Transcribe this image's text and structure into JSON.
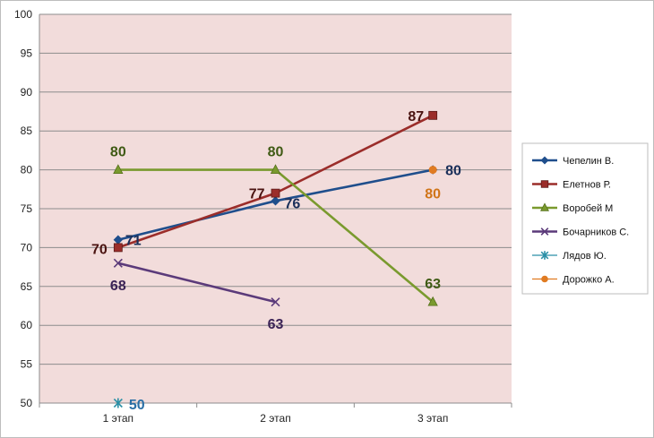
{
  "chart_data": {
    "type": "line",
    "title": "",
    "xlabel": "",
    "ylabel": "",
    "categories": [
      "1 этап",
      "2 этап",
      "3 этап"
    ],
    "ylim": [
      50,
      100
    ],
    "y_ticks": [
      "50",
      "55",
      "60",
      "65",
      "70",
      "75",
      "80",
      "85",
      "90",
      "95",
      "100"
    ],
    "grid": true,
    "legend_position": "right",
    "series": [
      {
        "name": "Чепелин В.",
        "values": [
          71,
          76,
          80
        ],
        "labels": [
          "71",
          "76",
          "80"
        ],
        "color": "#1f4e8c",
        "marker": "diamond"
      },
      {
        "name": "Елетнов Р.",
        "values": [
          70,
          77,
          87
        ],
        "labels": [
          "70",
          "77",
          "87"
        ],
        "color": "#9b2d2a",
        "marker": "square"
      },
      {
        "name": "Воробей М",
        "values": [
          80,
          80,
          63
        ],
        "labels": [
          "80",
          "80",
          "63"
        ],
        "color": "#7a9a2e",
        "marker": "triangle"
      },
      {
        "name": "Бочарников С.",
        "values": [
          68,
          63,
          null
        ],
        "labels": [
          "68",
          "63",
          ""
        ],
        "color": "#5b3a7a",
        "marker": "x"
      },
      {
        "name": "Лядов Ю.",
        "values": [
          50,
          null,
          null
        ],
        "labels": [
          "50",
          "",
          ""
        ],
        "color": "#2a8fa6",
        "marker": "star"
      },
      {
        "name": "Дорожко А.",
        "values": [
          null,
          null,
          80
        ],
        "labels": [
          "",
          "",
          "80"
        ],
        "color": "#e07b22",
        "marker": "circle"
      }
    ]
  }
}
